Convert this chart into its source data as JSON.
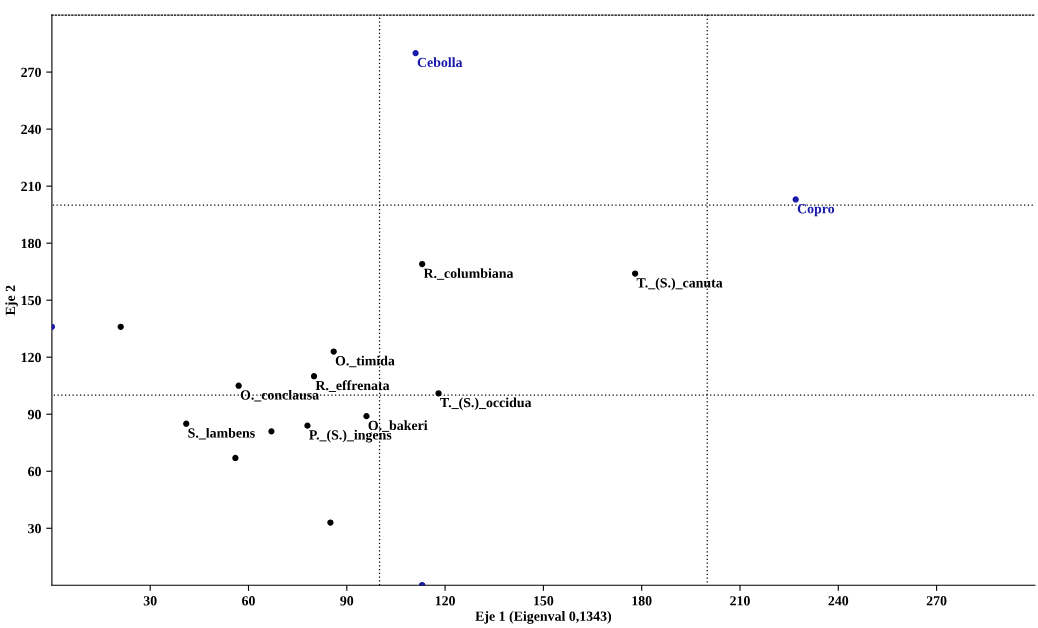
{
  "chart_data": {
    "type": "scatter",
    "xlabel": "Eje 1 (Eigenval 0,1343)",
    "ylabel": "Eje 2",
    "xlim": [
      0,
      300
    ],
    "ylim": [
      0,
      300
    ],
    "xticks": [
      30,
      60,
      90,
      120,
      150,
      180,
      210,
      240,
      270
    ],
    "yticks": [
      30,
      60,
      90,
      120,
      150,
      180,
      210,
      240,
      270
    ],
    "grid": false,
    "marker": "circle",
    "ref_lines": [
      {
        "axis": "x",
        "value": 100,
        "line_style": "dotted",
        "color": "#000000"
      },
      {
        "axis": "x",
        "value": 200,
        "line_style": "dotted",
        "color": "#000000"
      },
      {
        "axis": "y",
        "value": 100,
        "line_style": "dotted",
        "color": "#000000"
      },
      {
        "axis": "y",
        "value": 200,
        "line_style": "dotted",
        "color": "#000000"
      }
    ],
    "series": [
      {
        "color": "#000000",
        "x": [
          113,
          178,
          86,
          80,
          57,
          118,
          96,
          41,
          67,
          78,
          56,
          85,
          21,
          113
        ],
        "values": [
          169,
          164,
          123,
          110,
          105,
          101,
          89,
          85,
          81,
          84,
          67,
          33,
          136,
          0
        ]
      },
      {
        "color": "#1a1aaa",
        "x": [
          111,
          227,
          0,
          113
        ],
        "values": [
          280,
          203,
          136,
          0
        ]
      }
    ],
    "annotations": [
      {
        "text": "R._columbiana",
        "x": 113,
        "y": 169
      },
      {
        "text": "T._(S.)_canuta",
        "x": 178,
        "y": 164
      },
      {
        "text": "O._timida",
        "x": 86,
        "y": 123
      },
      {
        "text": "R._effrenata",
        "x": 80,
        "y": 110
      },
      {
        "text": "O._conclausa",
        "x": 57,
        "y": 105
      },
      {
        "text": "T._(S.)_occidua",
        "x": 118,
        "y": 101
      },
      {
        "text": "O._bakeri",
        "x": 96,
        "y": 89
      },
      {
        "text": "S._lambens",
        "x": 41,
        "y": 85
      },
      {
        "text": "P._(S.)_ingens",
        "x": 78,
        "y": 84
      },
      {
        "text": "Cebolla",
        "x": 111,
        "y": 280
      },
      {
        "text": "Copro",
        "x": 227,
        "y": 203
      }
    ]
  }
}
